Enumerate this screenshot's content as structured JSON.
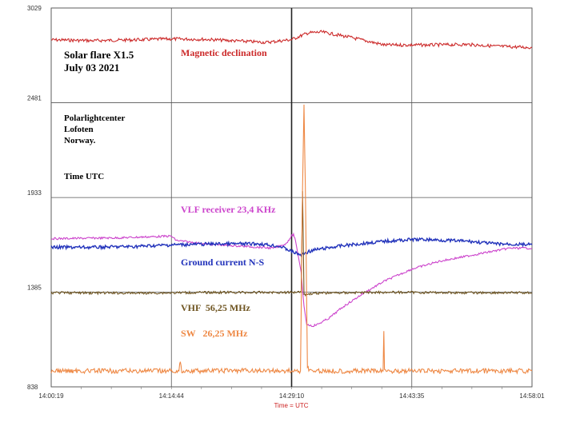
{
  "chart_data": {
    "type": "line",
    "xlabel": "Time = UTC",
    "x_ticks": [
      "14:00:19",
      "14:14:44",
      "14:29:10",
      "14:43:35",
      "14:58:01"
    ],
    "y_ticks": [
      3029,
      2481,
      1933,
      1385,
      838
    ],
    "ylim": [
      838,
      3029
    ],
    "xlim_seconds_span": 3462,
    "grid": true,
    "marker_time": "14:29:10",
    "annotations": {
      "title_line1": "Solar flare X1.5",
      "title_line2": "July 03 2021",
      "station_line1": "Polarlightcenter",
      "station_line2": "Lofoten",
      "station_line3": "Norway.",
      "time_note": "Time UTC"
    },
    "series": [
      {
        "name": "Magnetic declination",
        "color": "#cc2a2a",
        "x": [
          0,
          300,
          600,
          865,
          1100,
          1350,
          1550,
          1730,
          1850,
          1950,
          2150,
          2400,
          2700,
          3000,
          3200,
          3462
        ],
        "y": [
          2845,
          2840,
          2845,
          2850,
          2848,
          2838,
          2830,
          2846,
          2885,
          2890,
          2860,
          2815,
          2815,
          2818,
          2808,
          2800
        ]
      },
      {
        "name": "VLF receiver 23,4 KHz",
        "color": "#cc44cc",
        "x": [
          0,
          500,
          865,
          900,
          1100,
          1400,
          1600,
          1690,
          1730,
          1745,
          1760,
          1800,
          1820,
          1840,
          1880,
          1920,
          2000,
          2100,
          2250,
          2400,
          2600,
          2800,
          3000,
          3200,
          3300,
          3462
        ],
        "y": [
          1695,
          1700,
          1710,
          1685,
          1665,
          1650,
          1640,
          1665,
          1710,
          1720,
          1680,
          1500,
          1300,
          1200,
          1190,
          1200,
          1235,
          1300,
          1380,
          1450,
          1520,
          1565,
          1595,
          1625,
          1640,
          1640
        ]
      },
      {
        "name": "Ground current N-S",
        "color": "#2233bb",
        "x": [
          0,
          300,
          600,
          900,
          1200,
          1500,
          1650,
          1750,
          1800,
          1850,
          1900,
          2100,
          2400,
          2600,
          2700,
          3000,
          3200,
          3462
        ],
        "y": [
          1645,
          1645,
          1650,
          1660,
          1665,
          1665,
          1650,
          1615,
          1600,
          1620,
          1630,
          1655,
          1680,
          1690,
          1690,
          1680,
          1665,
          1660
        ]
      },
      {
        "name": "VHF  56,25 MHz",
        "color": "#6e5420",
        "x": [
          0,
          600,
          1200,
          1730,
          1800,
          1810,
          1820,
          1830,
          1850,
          1900,
          2400,
          3000,
          3462
        ],
        "y": [
          1382,
          1380,
          1384,
          1384,
          1390,
          1970,
          1380,
          1370,
          1375,
          1380,
          1385,
          1382,
          1382
        ]
      },
      {
        "name": "SW   26,25 MHz",
        "color": "#ee8844",
        "x": [
          0,
          400,
          920,
          930,
          940,
          1400,
          1795,
          1810,
          1820,
          1830,
          1845,
          1860,
          2300,
          2390,
          2395,
          2400,
          2420,
          3000,
          3462
        ],
        "y": [
          930,
          930,
          930,
          985,
          930,
          932,
          930,
          1990,
          2470,
          1990,
          960,
          930,
          930,
          930,
          1160,
          940,
          930,
          930,
          930
        ]
      }
    ]
  }
}
